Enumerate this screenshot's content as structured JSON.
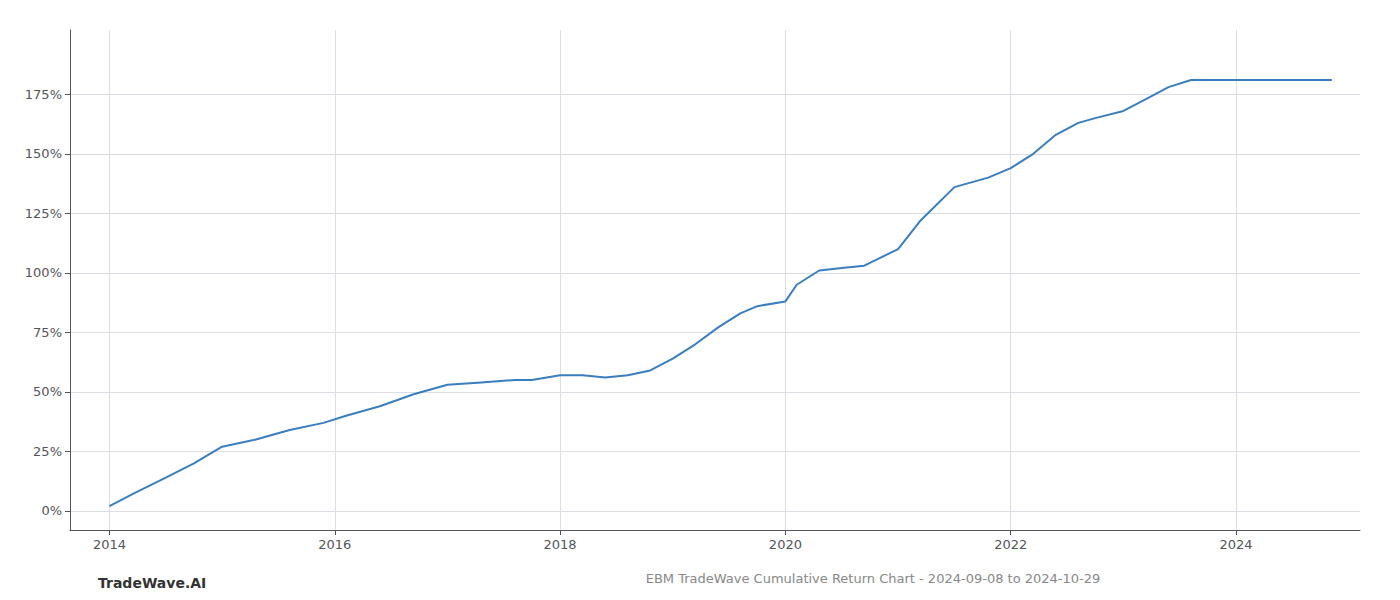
{
  "chart_data": {
    "type": "line",
    "title": "EBM TradeWave Cumulative Return Chart - 2024-09-08 to 2024-10-29",
    "annotations": [
      "TradeWave.AI"
    ],
    "x": [
      2014.0,
      2014.2,
      2014.5,
      2014.75,
      2015.0,
      2015.3,
      2015.6,
      2015.9,
      2016.1,
      2016.4,
      2016.7,
      2017.0,
      2017.3,
      2017.6,
      2017.75,
      2018.0,
      2018.2,
      2018.4,
      2018.6,
      2018.8,
      2019.0,
      2019.2,
      2019.4,
      2019.6,
      2019.75,
      2020.0,
      2020.1,
      2020.3,
      2020.5,
      2020.7,
      2021.0,
      2021.2,
      2021.5,
      2021.8,
      2022.0,
      2022.2,
      2022.4,
      2022.6,
      2022.75,
      2023.0,
      2023.2,
      2023.4,
      2023.6,
      2024.0,
      2024.5,
      2024.85
    ],
    "values": [
      2,
      7,
      14,
      20,
      27,
      30,
      34,
      37,
      40,
      44,
      49,
      53,
      54,
      55,
      55,
      57,
      57,
      56,
      57,
      59,
      64,
      70,
      77,
      83,
      86,
      88,
      95,
      101,
      102,
      103,
      110,
      122,
      136,
      140,
      144,
      150,
      158,
      163,
      165,
      168,
      173,
      178,
      181,
      181,
      181,
      181
    ],
    "color": "#3a7ebf",
    "xlim": [
      2013.65,
      2025.1
    ],
    "ylim": [
      -8,
      202
    ],
    "xticks": [
      2014,
      2016,
      2018,
      2020,
      2022,
      2024
    ],
    "yticks": [
      {
        "value": 0,
        "label": "0%"
      },
      {
        "value": 25,
        "label": "25%"
      },
      {
        "value": 50,
        "label": "50%"
      },
      {
        "value": 75,
        "label": "75%"
      },
      {
        "value": 100,
        "label": "100%"
      },
      {
        "value": 125,
        "label": "125%"
      },
      {
        "value": 150,
        "label": "150%"
      },
      {
        "value": 175,
        "label": "175%"
      }
    ],
    "grid": true
  }
}
